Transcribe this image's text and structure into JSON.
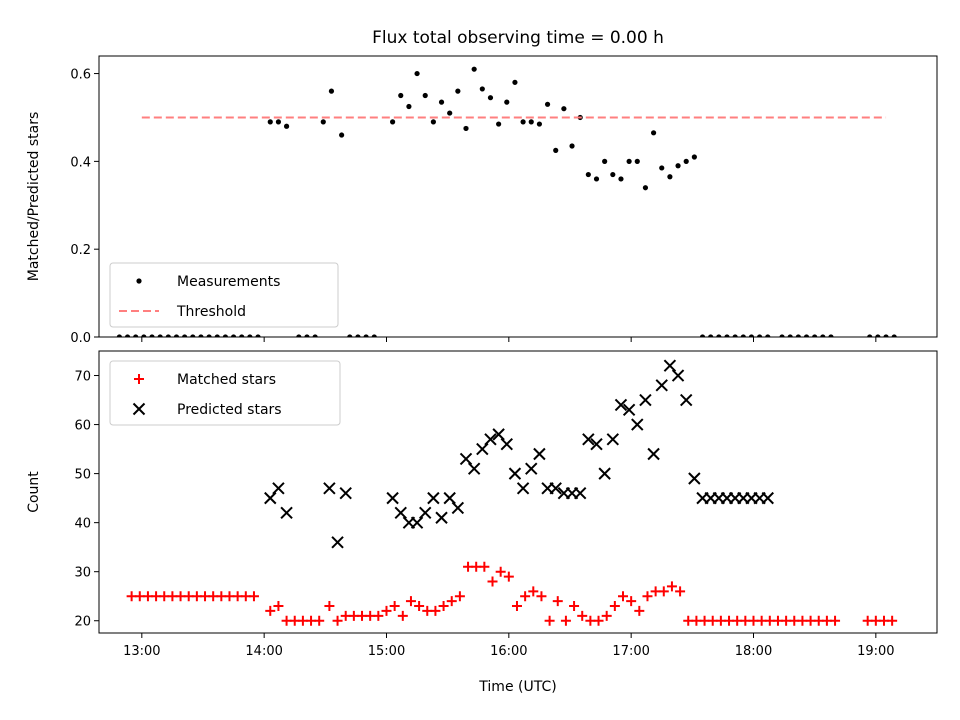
{
  "chart_data": {
    "title": "Flux total observing time = 0.00 h",
    "shared_x": {
      "label": "Time (UTC)",
      "ticks": [
        {
          "value": 780,
          "label": "13:00"
        },
        {
          "value": 840,
          "label": "14:00"
        },
        {
          "value": 900,
          "label": "15:00"
        },
        {
          "value": 960,
          "label": "16:00"
        },
        {
          "value": 1020,
          "label": "17:00"
        },
        {
          "value": 1080,
          "label": "18:00"
        },
        {
          "value": 1140,
          "label": "19:00"
        }
      ],
      "xlim": [
        759,
        1170
      ],
      "units": "minutes since 00:00 UTC"
    },
    "panels": [
      {
        "type": "scatter",
        "ylabel": "Matched/Predicted stars",
        "ylim": [
          0,
          0.64
        ],
        "yticks": [
          "0.0",
          "0.2",
          "0.4",
          "0.6"
        ],
        "ytick_values": [
          0,
          0.2,
          0.4,
          0.6
        ],
        "legend_position": "lower-left",
        "series": [
          {
            "name": "Measurements",
            "marker": "dot",
            "color": "#000000",
            "x": [
              769,
              773,
              777,
              781,
              785,
              789,
              793,
              797,
              801,
              805,
              809,
              813,
              817,
              821,
              825,
              829,
              833,
              837,
              843,
              847,
              851,
              857,
              861,
              865,
              869,
              873,
              878,
              882,
              886,
              890,
              894,
              903,
              907,
              911,
              915,
              919,
              923,
              927,
              931,
              935,
              939,
              943,
              947,
              951,
              955,
              959,
              963,
              967,
              971,
              975,
              979,
              983,
              987,
              991,
              995,
              999,
              1003,
              1007,
              1011,
              1015,
              1019,
              1023,
              1027,
              1031,
              1035,
              1039,
              1043,
              1047,
              1051,
              1055,
              1059,
              1063,
              1067,
              1071,
              1075,
              1079,
              1083,
              1087,
              1094,
              1098,
              1102,
              1106,
              1110,
              1114,
              1118,
              1137,
              1141,
              1145,
              1149
            ],
            "y": [
              0,
              0,
              0,
              0,
              0,
              0,
              0,
              0,
              0,
              0,
              0,
              0,
              0,
              0,
              0,
              0,
              0,
              0,
              0.49,
              0.49,
              0.48,
              0,
              0,
              0,
              0.49,
              0.56,
              0.46,
              0,
              0,
              0,
              0,
              0.49,
              0.55,
              0.525,
              0.6,
              0.55,
              0.49,
              0.535,
              0.51,
              0.56,
              0.475,
              0.61,
              0.565,
              0.545,
              0.485,
              0.535,
              0.58,
              0.49,
              0.49,
              0.485,
              0.53,
              0.425,
              0.52,
              0.435,
              0.5,
              0.37,
              0.36,
              0.4,
              0.37,
              0.36,
              0.4,
              0.4,
              0.34,
              0.465,
              0.385,
              0.365,
              0.39,
              0.4,
              0.41,
              0,
              0,
              0,
              0,
              0,
              0,
              0,
              0,
              0,
              0,
              0,
              0,
              0,
              0,
              0,
              0,
              0,
              0,
              0,
              0
            ]
          },
          {
            "name": "Threshold",
            "style": "dashed",
            "color": "#ff7f7f",
            "x": [
              780,
              1145
            ],
            "y": [
              0.5,
              0.5
            ]
          }
        ]
      },
      {
        "type": "scatter",
        "ylabel": "Count",
        "ylim": [
          17.5,
          75
        ],
        "yticks": [
          "20",
          "30",
          "40",
          "50",
          "60",
          "70"
        ],
        "ytick_values": [
          20,
          30,
          40,
          50,
          60,
          70
        ],
        "legend_position": "upper-left",
        "series": [
          {
            "name": "Matched stars",
            "marker": "plus",
            "color": "#ff0000",
            "x": [
              775,
              779,
              783,
              787,
              791,
              795,
              799,
              803,
              807,
              811,
              815,
              819,
              823,
              827,
              831,
              835,
              843,
              847,
              851,
              855,
              859,
              863,
              867,
              872,
              876,
              880,
              884,
              888,
              892,
              896,
              900,
              904,
              908,
              912,
              916,
              920,
              924,
              928,
              932,
              936,
              940,
              944,
              948,
              952,
              956,
              960,
              964,
              968,
              972,
              976,
              980,
              984,
              988,
              992,
              996,
              1000,
              1004,
              1008,
              1012,
              1016,
              1020,
              1024,
              1028,
              1032,
              1036,
              1040,
              1044,
              1048,
              1052,
              1056,
              1060,
              1064,
              1068,
              1072,
              1076,
              1080,
              1084,
              1088,
              1092,
              1096,
              1100,
              1104,
              1108,
              1112,
              1116,
              1120,
              1136,
              1140,
              1144,
              1148
            ],
            "y": [
              25,
              25,
              25,
              25,
              25,
              25,
              25,
              25,
              25,
              25,
              25,
              25,
              25,
              25,
              25,
              25,
              22,
              23,
              20,
              20,
              20,
              20,
              20,
              23,
              20,
              21,
              21,
              21,
              21,
              21,
              22,
              23,
              21,
              24,
              23,
              22,
              22,
              23,
              24,
              25,
              31,
              31,
              31,
              28,
              30,
              29,
              23,
              25,
              26,
              25,
              20,
              24,
              20,
              23,
              21,
              20,
              20,
              21,
              23,
              25,
              24,
              22,
              25,
              26,
              26,
              27,
              26,
              20,
              20,
              20,
              20,
              20,
              20,
              20,
              20,
              20,
              20,
              20,
              20,
              20,
              20,
              20,
              20,
              20,
              20,
              20,
              20,
              20,
              20,
              20
            ]
          },
          {
            "name": "Predicted stars",
            "marker": "x",
            "color": "#000000",
            "x": [
              843,
              847,
              851,
              872,
              876,
              880,
              903,
              907,
              911,
              915,
              919,
              923,
              927,
              931,
              935,
              939,
              943,
              947,
              951,
              955,
              959,
              963,
              967,
              971,
              975,
              979,
              983,
              987,
              991,
              995,
              999,
              1003,
              1007,
              1011,
              1015,
              1019,
              1023,
              1027,
              1031,
              1035,
              1039,
              1043,
              1047,
              1051,
              1055,
              1059,
              1063,
              1067,
              1071,
              1075,
              1079,
              1083,
              1087
            ],
            "y": [
              45,
              47,
              42,
              47,
              36,
              46,
              45,
              42,
              40,
              40,
              42,
              45,
              41,
              45,
              43,
              53,
              51,
              55,
              57,
              58,
              56,
              50,
              47,
              51,
              54,
              47,
              47,
              46,
              46,
              46,
              57,
              56,
              50,
              57,
              64,
              63,
              60,
              65,
              54,
              68,
              72,
              70,
              65,
              49,
              45,
              45,
              45,
              45,
              45,
              45,
              45,
              45,
              45
            ]
          }
        ]
      }
    ]
  }
}
